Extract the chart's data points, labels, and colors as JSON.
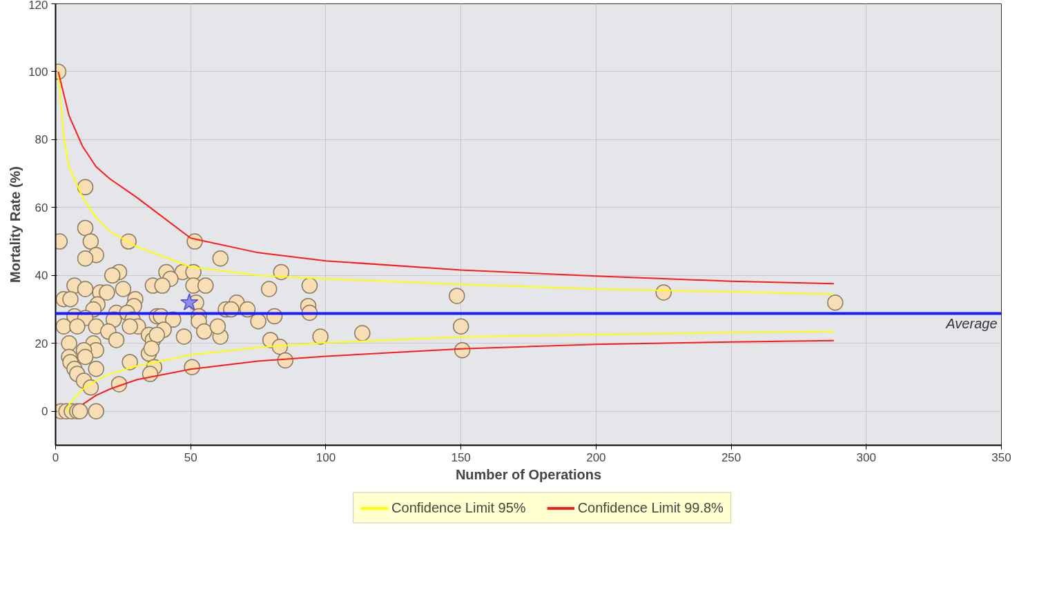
{
  "chart_data": {
    "type": "scatter",
    "xlabel": "Number of Operations",
    "ylabel": "Mortality Rate (%)",
    "xlim": [
      0,
      350
    ],
    "ylim": [
      -10,
      120
    ],
    "xticks": [
      0,
      50,
      100,
      150,
      200,
      250,
      300,
      350
    ],
    "yticks": [
      0,
      20,
      40,
      60,
      80,
      100,
      120
    ],
    "grid": true,
    "legend": "bottom",
    "ref_lines": [
      {
        "axis": "y",
        "value": 28.8,
        "label": "Average",
        "color": "#1a1aff"
      }
    ],
    "series": [
      {
        "marker": "circle",
        "color": "#f7deb5",
        "x": [
          1,
          1.5,
          11,
          11,
          13,
          15,
          11,
          27,
          51.5,
          61,
          83.5,
          23.5,
          21,
          41,
          47,
          51,
          42.5,
          7,
          11,
          36,
          39.5,
          51,
          55.5,
          79,
          94,
          148.5,
          225,
          288.5,
          3,
          5.5,
          16.5,
          19,
          25,
          29.5,
          29,
          15.5,
          14,
          52,
          67,
          63,
          65,
          71,
          93.5,
          94,
          7,
          11,
          22.5,
          26.5,
          37.5,
          39,
          43.5,
          53,
          53,
          81,
          75,
          3,
          8,
          15,
          21.5,
          28.5,
          30.5,
          27.5,
          19.5,
          34.5,
          40,
          55,
          61,
          47.5,
          60,
          98,
          113.5,
          150,
          5,
          22.5,
          14,
          36,
          37.5,
          79.5,
          83,
          150.5,
          15,
          10.5,
          5,
          11,
          34.5,
          35.5,
          5.5,
          7,
          15,
          27.5,
          36.5,
          50.5,
          85,
          8,
          35,
          10.5,
          13,
          23.5,
          2,
          4,
          6,
          8,
          9,
          15
        ],
        "values": [
          100,
          50,
          66,
          54,
          50,
          46,
          45,
          50,
          50,
          45,
          41,
          41,
          40,
          41,
          41,
          41,
          39,
          37,
          36,
          37,
          37,
          37,
          37,
          36,
          37,
          34,
          35,
          32,
          33,
          33,
          35,
          35,
          36,
          33,
          31,
          31.5,
          30,
          32,
          32,
          30,
          30,
          30,
          31,
          29,
          28,
          27.5,
          29,
          29,
          28,
          28,
          27,
          28,
          26.5,
          28,
          26.5,
          25,
          25,
          25,
          27,
          27,
          25,
          25,
          23.5,
          22.5,
          24,
          23.5,
          22,
          22,
          25,
          22,
          23,
          25,
          20,
          21,
          20,
          21,
          22.5,
          21,
          19,
          18,
          18,
          18,
          16,
          16,
          17,
          18.5,
          14.5,
          12.5,
          12.5,
          14.5,
          13,
          13,
          15,
          11,
          11,
          9,
          7,
          8,
          0,
          0,
          0,
          0,
          0,
          0
        ]
      },
      {
        "marker": "star",
        "color": "#8c8cf0",
        "x": [
          49.5
        ],
        "values": [
          32
        ]
      },
      {
        "type": "line",
        "name": "Confidence Limit 95%",
        "color": "#ffff00",
        "x": [
          1,
          3,
          5,
          10,
          15,
          20,
          30,
          50,
          75,
          100,
          150,
          200,
          250,
          288
        ],
        "values": [
          100,
          81,
          72,
          63,
          57,
          53,
          48.5,
          42.5,
          40,
          39,
          37.4,
          36,
          35.2,
          34.5
        ]
      },
      {
        "type": "line",
        "name": "Confidence Limit 99.8%",
        "color": "#ff1a1a",
        "x": [
          1,
          5,
          10,
          15,
          20,
          30,
          50,
          75,
          100,
          150,
          200,
          250,
          288
        ],
        "values": [
          100,
          87,
          78,
          72,
          68.5,
          63,
          51,
          46.7,
          44.3,
          41.6,
          39.8,
          38.3,
          37.6
        ]
      },
      {
        "type": "line",
        "color": "#ffff00",
        "x": [
          4,
          5,
          10,
          15,
          20,
          30,
          50,
          75,
          100,
          150,
          200,
          250,
          288
        ],
        "values": [
          0,
          2,
          6.5,
          9,
          11,
          13.3,
          16.6,
          18.8,
          20.2,
          21.9,
          22.6,
          23.2,
          23.5
        ]
      },
      {
        "type": "line",
        "color": "#ff1a1a",
        "x": [
          10,
          15,
          20,
          30,
          50,
          75,
          100,
          150,
          200,
          250,
          288
        ],
        "values": [
          2,
          4.7,
          6.5,
          9.3,
          12.4,
          14.8,
          16.2,
          18.4,
          19.7,
          20.4,
          20.8
        ]
      }
    ]
  }
}
